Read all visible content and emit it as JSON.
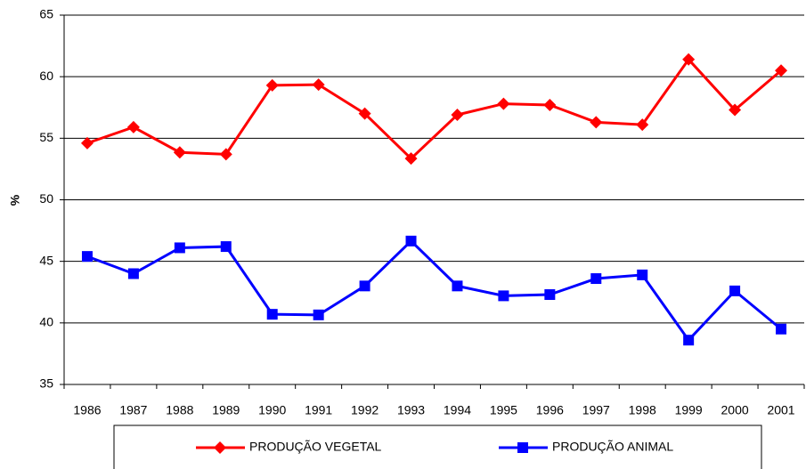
{
  "chart_data": {
    "type": "line",
    "y_label": "%",
    "categories": [
      "1986",
      "1987",
      "1988",
      "1989",
      "1990",
      "1991",
      "1992",
      "1993",
      "1994",
      "1995",
      "1996",
      "1997",
      "1998",
      "1999",
      "2000",
      "2001"
    ],
    "series": [
      {
        "name": "PRODUÇÃO VEGETAL",
        "color": "#ff0000",
        "marker": "diamond",
        "values": [
          54.6,
          55.9,
          53.85,
          53.7,
          59.3,
          59.35,
          57.0,
          53.35,
          56.9,
          57.8,
          57.7,
          56.3,
          56.1,
          61.4,
          57.3,
          60.5
        ]
      },
      {
        "name": "PRODUÇÃO ANIMAL",
        "color": "#0000ff",
        "marker": "square",
        "values": [
          45.4,
          44.0,
          46.1,
          46.2,
          40.7,
          40.65,
          43.0,
          46.65,
          43.0,
          42.2,
          42.3,
          43.6,
          43.9,
          38.6,
          42.6,
          39.5
        ]
      }
    ],
    "ylim": [
      35,
      65
    ],
    "yticks": [
      35,
      40,
      45,
      50,
      55,
      60,
      65
    ],
    "grid": true,
    "legend": "bottom"
  }
}
